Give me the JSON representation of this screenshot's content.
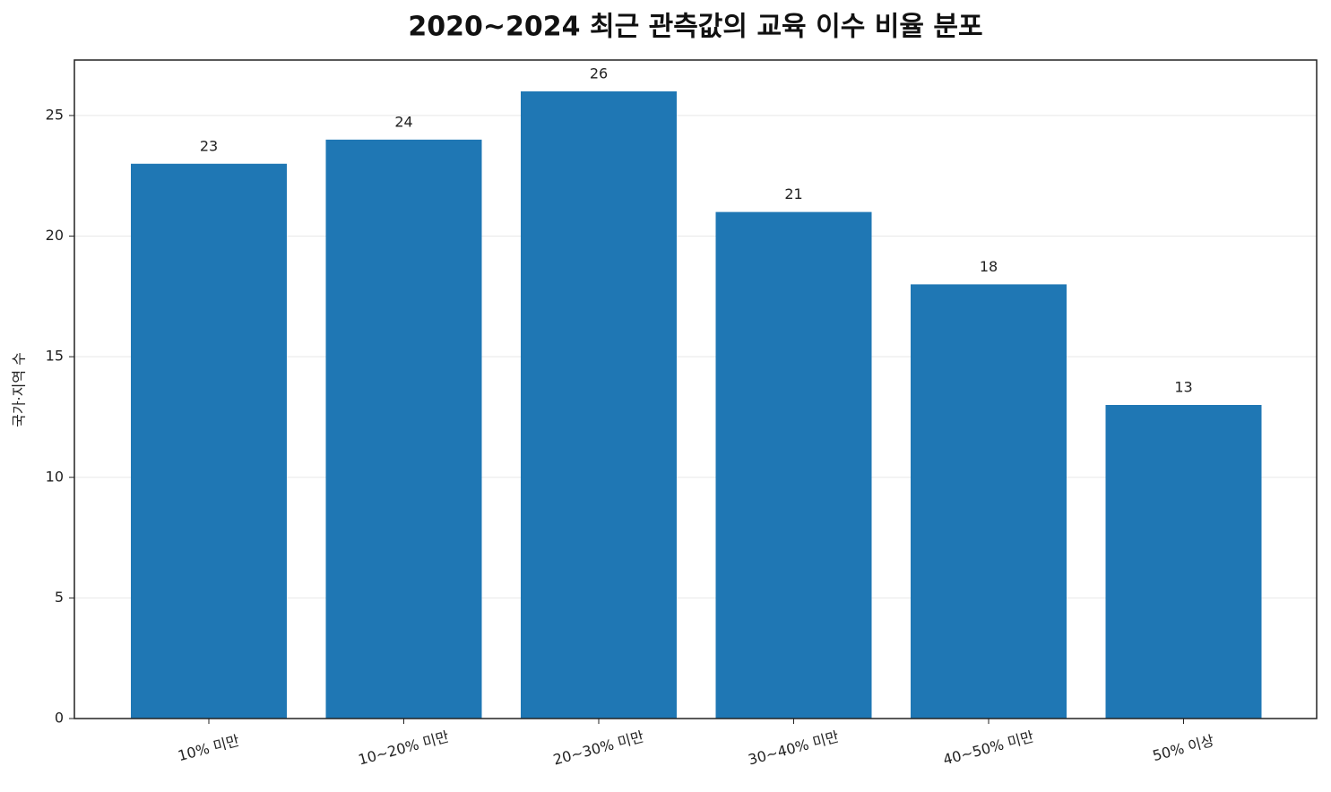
{
  "chart_data": {
    "type": "bar",
    "title": "2020~2024 최근 관측값의 교육 이수 비율 분포",
    "ylabel": "국가·지역 수",
    "categories": [
      "10% 미만",
      "10~20% 미만",
      "20~30% 미만",
      "30~40% 미만",
      "40~50% 미만",
      "50% 이상"
    ],
    "values": [
      23,
      24,
      26,
      21,
      18,
      13
    ],
    "color": "#1f77b4",
    "ylim": [
      0,
      27.3
    ],
    "yticks": [
      0,
      5,
      10,
      15,
      20,
      25
    ],
    "grid": true
  }
}
